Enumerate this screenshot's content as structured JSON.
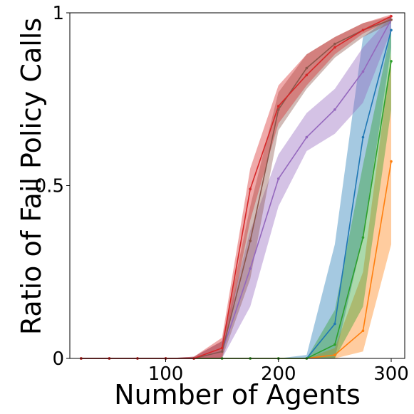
{
  "chart_data": {
    "type": "line",
    "xlabel": "Number of Agents",
    "ylabel": "Ratio of Fail Policy Calls",
    "xlim": [
      15,
      312
    ],
    "ylim": [
      0,
      1
    ],
    "x_ticks": [
      {
        "value": 100,
        "label": "100"
      },
      {
        "value": 200,
        "label": "200"
      },
      {
        "value": 300,
        "label": "300"
      }
    ],
    "y_ticks": [
      {
        "value": 0,
        "label": "0"
      },
      {
        "value": 0.5,
        "label": "0.5"
      },
      {
        "value": 1,
        "label": "1"
      }
    ],
    "grid": false,
    "legend": "none",
    "x": [
      25,
      50,
      75,
      100,
      125,
      150,
      175,
      200,
      225,
      250,
      275,
      300
    ],
    "series": [
      {
        "color": "#1f77b4",
        "fill_color": "#1f77b4",
        "values": [
          0,
          0,
          0,
          0,
          0,
          0,
          0,
          0,
          0,
          0.1,
          0.64,
          0.95
        ],
        "lower": [
          0,
          0,
          0,
          0,
          0,
          0,
          0,
          0,
          0,
          0.0,
          0.35,
          0.9
        ],
        "upper": [
          0,
          0,
          0,
          0,
          0,
          0,
          0,
          0,
          0.01,
          0.33,
          0.93,
          0.99
        ]
      },
      {
        "color": "#ff7f0e",
        "fill_color": "#ff7f0e",
        "values": [
          0,
          0,
          0,
          0,
          0,
          0,
          0,
          0,
          0,
          0.01,
          0.08,
          0.57
        ],
        "lower": [
          0,
          0,
          0,
          0,
          0,
          0,
          0,
          0,
          0,
          0.0,
          0.02,
          0.33
        ],
        "upper": [
          0,
          0,
          0,
          0,
          0,
          0,
          0,
          0,
          0,
          0.03,
          0.25,
          0.88
        ]
      },
      {
        "color": "#2ca02c",
        "fill_color": "#2ca02c",
        "values": [
          0,
          0,
          0,
          0,
          0,
          0,
          0,
          0,
          0,
          0.04,
          0.35,
          0.86
        ],
        "lower": [
          0,
          0,
          0,
          0,
          0,
          0,
          0,
          0,
          0,
          0.0,
          0.15,
          0.72
        ],
        "upper": [
          0,
          0,
          0,
          0,
          0,
          0,
          0,
          0,
          0,
          0.14,
          0.56,
          0.95
        ]
      },
      {
        "color": "#9467bd",
        "fill_color": "#9467bd",
        "values": [
          0,
          0,
          0,
          0,
          0,
          0.02,
          0.26,
          0.52,
          0.64,
          0.72,
          0.83,
          0.98
        ],
        "lower": [
          0,
          0,
          0,
          0,
          0,
          0.0,
          0.15,
          0.44,
          0.6,
          0.65,
          0.74,
          0.95
        ],
        "upper": [
          0,
          0,
          0,
          0,
          0.005,
          0.05,
          0.37,
          0.59,
          0.71,
          0.78,
          0.9,
          0.99
        ]
      },
      {
        "color": "#8c564b",
        "fill_color": "#8c564b",
        "values": [
          0,
          0,
          0,
          0,
          0,
          0.02,
          0.34,
          0.72,
          0.84,
          0.91,
          0.95,
          0.98
        ],
        "lower": [
          0,
          0,
          0,
          0,
          0,
          0.0,
          0.23,
          0.66,
          0.78,
          0.87,
          0.93,
          0.97
        ],
        "upper": [
          0,
          0,
          0,
          0,
          0.005,
          0.05,
          0.44,
          0.77,
          0.88,
          0.93,
          0.97,
          0.99
        ]
      },
      {
        "color": "#d62728",
        "fill_color": "#d62728",
        "values": [
          0,
          0,
          0,
          0,
          0,
          0.03,
          0.49,
          0.73,
          0.82,
          0.9,
          0.95,
          0.99
        ],
        "lower": [
          0,
          0,
          0,
          0,
          0,
          0.0,
          0.4,
          0.68,
          0.79,
          0.88,
          0.94,
          0.98
        ],
        "upper": [
          0,
          0,
          0,
          0,
          0.005,
          0.06,
          0.55,
          0.79,
          0.88,
          0.93,
          0.97,
          0.995
        ]
      }
    ]
  }
}
